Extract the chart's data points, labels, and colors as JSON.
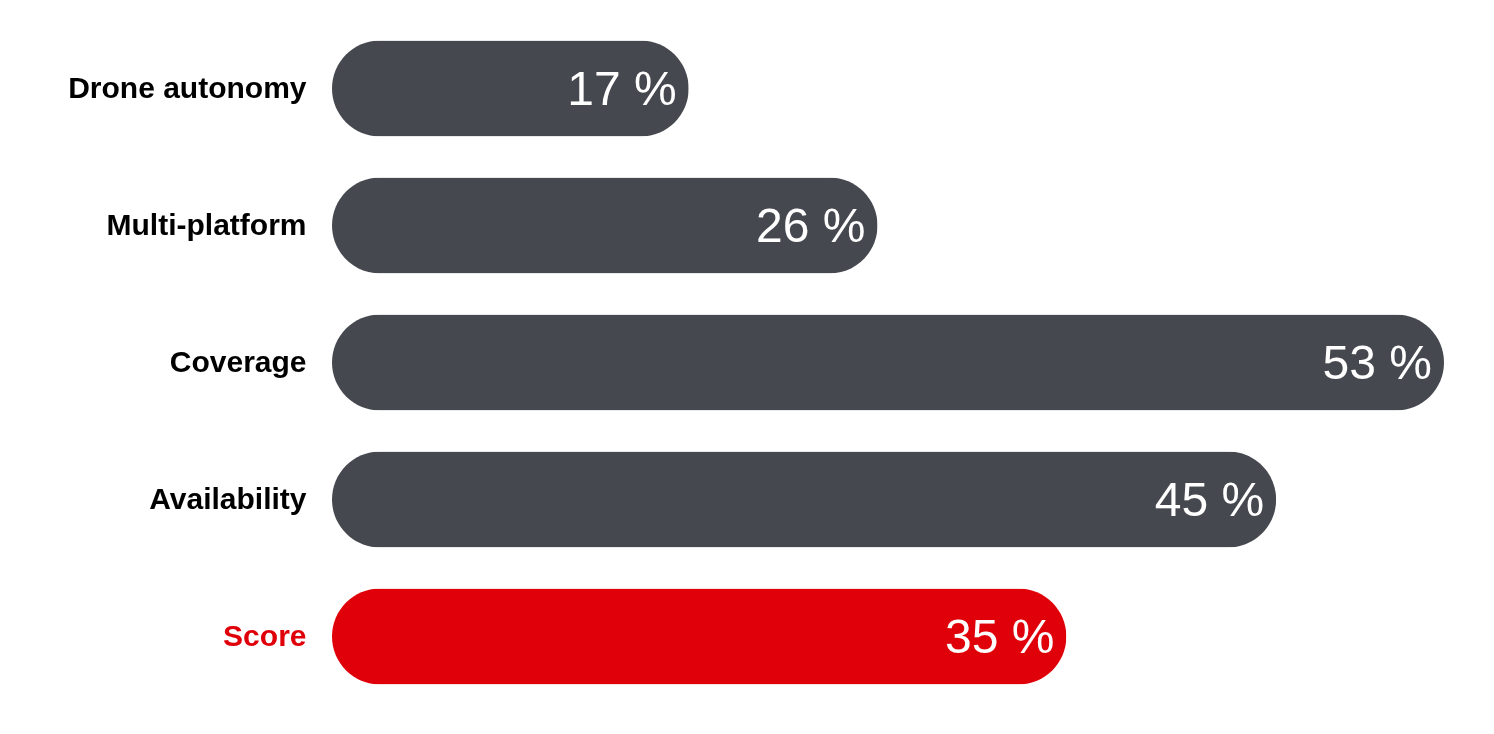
{
  "chart_data": {
    "type": "bar",
    "orientation": "horizontal",
    "categories": [
      "Drone autonomy",
      "Multi-platform",
      "Coverage",
      "Availability",
      "Score"
    ],
    "values": [
      17,
      26,
      53,
      45,
      35
    ],
    "value_labels": [
      "17 %",
      "26 %",
      "53 %",
      "45 %",
      "35 %"
    ],
    "colors": [
      "#45484f",
      "#45484f",
      "#45484f",
      "#45484f",
      "#e00009"
    ],
    "grid": false,
    "legend": false
  }
}
